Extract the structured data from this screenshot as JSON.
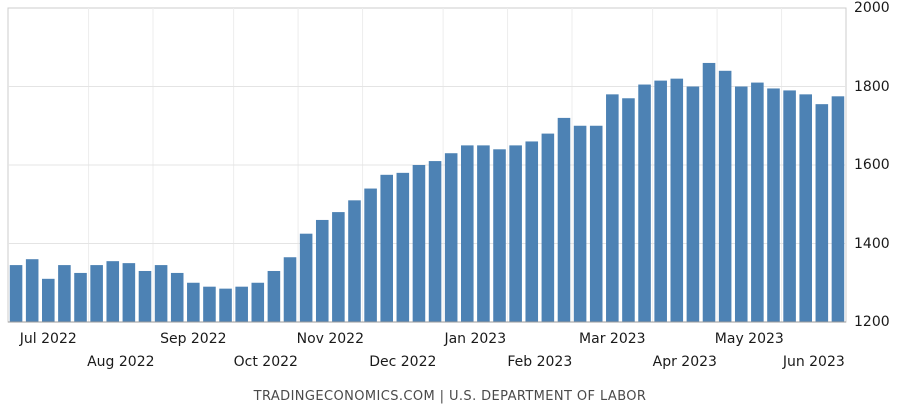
{
  "chart_data": {
    "type": "bar",
    "title": "",
    "xlabel": "",
    "ylabel": "",
    "ylim": [
      1200,
      2000
    ],
    "yticks": [
      1200,
      1400,
      1600,
      1800,
      2000
    ],
    "grid": true,
    "legend": "none",
    "bar_color": "#4d82b4",
    "values": [
      1345,
      1360,
      1310,
      1345,
      1325,
      1345,
      1355,
      1350,
      1330,
      1345,
      1325,
      1300,
      1290,
      1285,
      1290,
      1300,
      1330,
      1365,
      1425,
      1460,
      1480,
      1510,
      1540,
      1575,
      1580,
      1600,
      1610,
      1630,
      1650,
      1650,
      1640,
      1650,
      1660,
      1680,
      1720,
      1700,
      1700,
      1780,
      1770,
      1805,
      1815,
      1820,
      1800,
      1860,
      1840,
      1800,
      1810,
      1795,
      1790,
      1780,
      1755,
      1775
    ],
    "month_ticks": [
      {
        "label": "Jul 2022",
        "row": 1,
        "start_index": 0,
        "weeks": 5
      },
      {
        "label": "Aug 2022",
        "row": 2,
        "start_index": 5,
        "weeks": 4
      },
      {
        "label": "Sep 2022",
        "row": 1,
        "start_index": 9,
        "weeks": 5
      },
      {
        "label": "Oct 2022",
        "row": 2,
        "start_index": 14,
        "weeks": 4
      },
      {
        "label": "Nov 2022",
        "row": 1,
        "start_index": 18,
        "weeks": 4
      },
      {
        "label": "Dec 2022",
        "row": 2,
        "start_index": 22,
        "weeks": 5
      },
      {
        "label": "Jan 2023",
        "row": 1,
        "start_index": 27,
        "weeks": 4
      },
      {
        "label": "Feb 2023",
        "row": 2,
        "start_index": 31,
        "weeks": 4
      },
      {
        "label": "Mar 2023",
        "row": 1,
        "start_index": 35,
        "weeks": 5
      },
      {
        "label": "Apr 2023",
        "row": 2,
        "start_index": 40,
        "weeks": 4
      },
      {
        "label": "May 2023",
        "row": 1,
        "start_index": 44,
        "weeks": 4
      },
      {
        "label": "Jun 2023",
        "row": 2,
        "start_index": 48,
        "weeks": 4
      }
    ],
    "colors": {
      "grid_horizontal": "#e4e4e4",
      "grid_vertical": "#ededed",
      "plot_border": "#cccccc",
      "baseline": "#9a9a9a"
    }
  },
  "footer": {
    "source_text": "TRADINGECONOMICS.COM | U.S. DEPARTMENT OF LABOR"
  }
}
